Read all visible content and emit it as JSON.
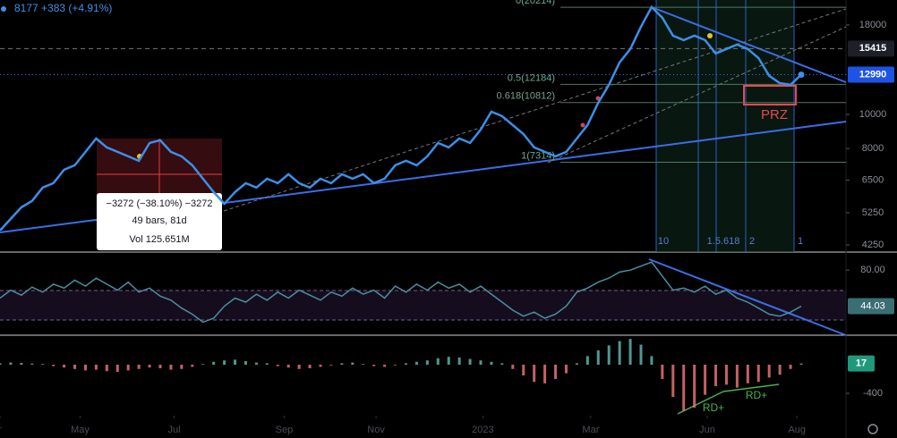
{
  "header": {
    "quote": "8177 +383 (+4.91%)"
  },
  "tooltip": {
    "change": "−3272 (−38.10%) −3272",
    "bars": "49 bars, 81d",
    "volume": "Vol 125.651M"
  },
  "annotations": {
    "zone": "PRZ",
    "cycles": [
      "10",
      "1.5.618",
      "2",
      "1"
    ],
    "divergences": [
      "RD+",
      "RD+"
    ]
  },
  "chart_data": [
    {
      "type": "line",
      "color": "#3d8fe8",
      "log_scale": true,
      "values": [
        4671,
        5040,
        5441,
        5670,
        6192,
        6373,
        6960,
        7166,
        7826,
        8547,
        8060,
        7826,
        7600,
        7380,
        8300,
        8448,
        7826,
        7600,
        7166,
        6563,
        6012,
        5569,
        6012,
        6373,
        6192,
        6563,
        6373,
        6759,
        6373,
        6192,
        6563,
        6373,
        6759,
        6563,
        6759,
        6373,
        6563,
        7166,
        7380,
        7166,
        7600,
        8300,
        8060,
        8547,
        8300,
        9063,
        10190,
        9895,
        9331,
        8802,
        8060,
        7826,
        7600,
        7826,
        8547,
        9331,
        10809,
        12150,
        14070,
        15370,
        17790,
        20240,
        18860,
        16780,
        16290,
        16780,
        16290,
        14920,
        15370,
        15820,
        15370,
        14490,
        12890,
        12290,
        12150,
        12990
      ],
      "xlim": [
        0,
        75
      ],
      "xticks": [
        {
          "value": 0,
          "label": "r"
        },
        {
          "value": 7.5,
          "label": "May"
        },
        {
          "value": 16.3,
          "label": "Jul"
        },
        {
          "value": 26.6,
          "label": "Sep"
        },
        {
          "value": 35.2,
          "label": "Nov"
        },
        {
          "value": 45.2,
          "label": "2023"
        },
        {
          "value": 55.3,
          "label": "Mar"
        },
        {
          "value": 66.2,
          "label": "Jun"
        },
        {
          "value": 74.6,
          "label": "Aug"
        }
      ],
      "ylim": [
        4055,
        21200
      ],
      "yticks": [
        4250,
        5250,
        6500,
        8000,
        10000,
        18000
      ],
      "price_lines": [
        15415,
        12990
      ],
      "fib_levels": [
        {
          "value": 20214,
          "label": "0(20214)"
        },
        {
          "value": 12184,
          "label": "0.5(12184)"
        },
        {
          "value": 10812,
          "label": "0.618(10812)"
        },
        {
          "value": 7314,
          "label": "1(7314)"
        }
      ]
    },
    {
      "type": "line",
      "color": "#4a8fa0",
      "values": [
        52,
        60,
        55,
        63,
        58,
        66,
        62,
        70,
        64,
        72,
        66,
        60,
        68,
        58,
        62,
        54,
        50,
        42,
        36,
        28,
        32,
        44,
        52,
        48,
        56,
        50,
        58,
        52,
        60,
        55,
        50,
        58,
        54,
        62,
        56,
        60,
        52,
        64,
        58,
        66,
        60,
        68,
        62,
        66,
        58,
        64,
        56,
        48,
        40,
        34,
        38,
        32,
        36,
        44,
        58,
        62,
        68,
        72,
        78,
        80,
        84,
        88,
        74,
        60,
        62,
        58,
        64,
        56,
        60,
        52,
        48,
        42,
        36,
        34,
        38,
        44.03
      ],
      "xlim": [
        0,
        75
      ],
      "ylim": [
        15,
        98
      ],
      "yticks": [
        {
          "value": 80,
          "label": "80.00"
        }
      ]
    },
    {
      "type": "bar",
      "colors": {
        "up": "#5fb3a8",
        "down": "#e57373"
      },
      "values": [
        20,
        30,
        25,
        15,
        10,
        -20,
        -40,
        -60,
        -80,
        -70,
        -90,
        -100,
        -80,
        -60,
        -40,
        -50,
        -70,
        -60,
        -30,
        10,
        40,
        60,
        70,
        50,
        30,
        20,
        -20,
        -40,
        -60,
        -50,
        -30,
        -10,
        20,
        30,
        10,
        -20,
        -30,
        -10,
        20,
        40,
        60,
        90,
        110,
        100,
        80,
        60,
        40,
        20,
        -60,
        -150,
        -240,
        -260,
        -200,
        -120,
        20,
        120,
        200,
        270,
        330,
        360,
        280,
        120,
        -200,
        -450,
        -650,
        -600,
        -420,
        -300,
        -280,
        -320,
        -260,
        -240,
        -180,
        -140,
        -60,
        17
      ],
      "xlim": [
        0,
        75
      ],
      "ylim": [
        -712,
        412
      ],
      "yticks": [
        -400
      ]
    }
  ]
}
